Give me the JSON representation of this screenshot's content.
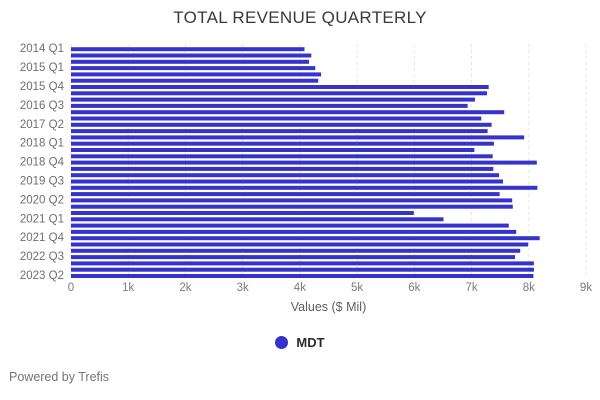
{
  "chart_data": {
    "type": "bar",
    "orientation": "horizontal",
    "title": "TOTAL REVENUE QUARTERLY",
    "xlabel": "Values ($ Mil)",
    "xlim": [
      0,
      9000
    ],
    "xticks": [
      "0",
      "1k",
      "2k",
      "3k",
      "4k",
      "5k",
      "6k",
      "7k",
      "8k",
      "9k"
    ],
    "ytick_labels": [
      "2014 Q1",
      "2015 Q1",
      "2015 Q4",
      "2016 Q3",
      "2017 Q2",
      "2018 Q1",
      "2018 Q4",
      "2019 Q3",
      "2020 Q2",
      "2021 Q1",
      "2021 Q4",
      "2022 Q3",
      "2023 Q2"
    ],
    "ytick_every": 3,
    "total_bars": 37,
    "grid": "vertical-dashed",
    "grid_color": "#e4e4e4",
    "bar_color": "#3533cb",
    "series": [
      {
        "name": "MDT",
        "values": [
          4080,
          4200,
          4160,
          4270,
          4370,
          4320,
          7300,
          7270,
          7060,
          6930,
          7570,
          7170,
          7350,
          7280,
          7920,
          7390,
          7050,
          7370,
          8140,
          7380,
          7480,
          7550,
          8150,
          7490,
          7710,
          7720,
          5990,
          6510,
          7650,
          7780,
          8190,
          7990,
          7850,
          7760,
          8090,
          8090,
          8080
        ]
      }
    ],
    "legend": [
      {
        "label": "MDT",
        "color": "#3533cb"
      }
    ],
    "legend_position": "bottom-center"
  },
  "footer": {
    "powered_by": "Powered by Trefis"
  }
}
